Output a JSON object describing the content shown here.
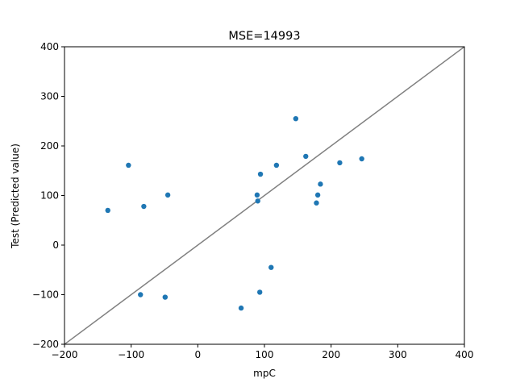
{
  "chart_data": {
    "type": "scatter",
    "title": "MSE=14993",
    "xlabel": "mpC",
    "ylabel": "Test (Predicted value)",
    "xlim": [
      -200,
      400
    ],
    "ylim": [
      -200,
      400
    ],
    "xticks": [
      -200,
      -100,
      0,
      100,
      200,
      300,
      400
    ],
    "yticks": [
      -200,
      -100,
      0,
      100,
      200,
      300,
      400
    ],
    "grid": false,
    "point_color": "#1f77b4",
    "reference_line": {
      "from": [
        -200,
        -200
      ],
      "to": [
        400,
        400
      ],
      "color": "#808080"
    },
    "points": [
      {
        "x": -135,
        "y": 70
      },
      {
        "x": -104,
        "y": 161
      },
      {
        "x": -81,
        "y": 78
      },
      {
        "x": -86,
        "y": -100
      },
      {
        "x": -49,
        "y": -105
      },
      {
        "x": -45,
        "y": 101
      },
      {
        "x": 65,
        "y": -127
      },
      {
        "x": 89,
        "y": 101
      },
      {
        "x": 90,
        "y": 89
      },
      {
        "x": 93,
        "y": -95
      },
      {
        "x": 94,
        "y": 143
      },
      {
        "x": 110,
        "y": -45
      },
      {
        "x": 118,
        "y": 161
      },
      {
        "x": 147,
        "y": 255
      },
      {
        "x": 162,
        "y": 179
      },
      {
        "x": 178,
        "y": 85
      },
      {
        "x": 180,
        "y": 101
      },
      {
        "x": 184,
        "y": 123
      },
      {
        "x": 213,
        "y": 166
      },
      {
        "x": 246,
        "y": 174
      }
    ]
  }
}
